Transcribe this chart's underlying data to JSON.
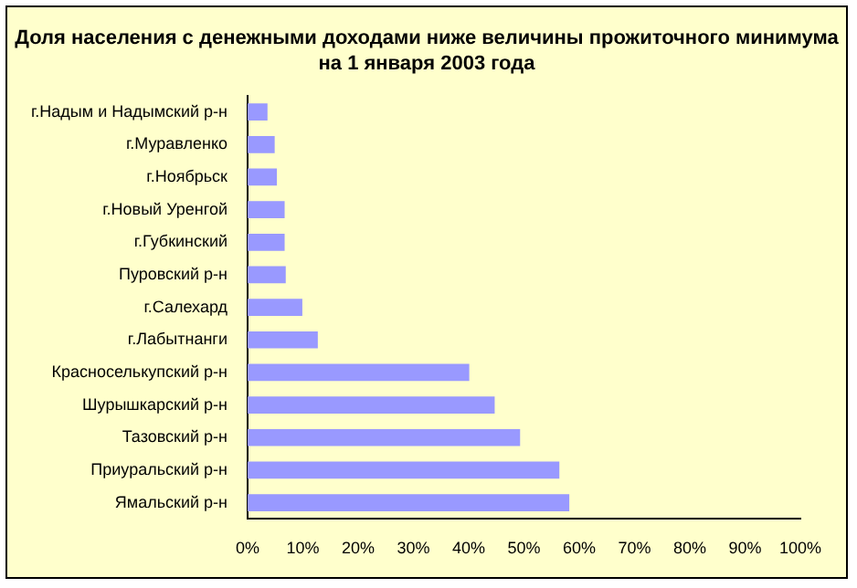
{
  "chart_data": {
    "type": "bar",
    "orientation": "horizontal",
    "title": "Доля населения с денежными доходами ниже величины прожиточного минимума на 1 января 2003 года",
    "categories": [
      "г.Надым и Надымский р-н",
      "г.Муравленко",
      "г.Ноябрьск",
      "г.Новый Уренгой",
      "г.Губкинский",
      "Пуровский р-н",
      "г.Салехард",
      "г.Лабытнанги",
      "Красноселькупский р-н",
      "Шурышкарский р-н",
      "Тазовский р-н",
      "Приуральский р-н",
      "Ямальский р-н"
    ],
    "values": [
      3.6,
      4.9,
      5.3,
      6.7,
      6.7,
      6.9,
      9.9,
      12.7,
      40.1,
      44.7,
      49.3,
      56.4,
      58.2
    ],
    "color": "#9999ff",
    "xlim": [
      0,
      100
    ],
    "xticks": [
      {
        "value": 0,
        "label": "0%"
      },
      {
        "value": 10,
        "label": "10%"
      },
      {
        "value": 20,
        "label": "20%"
      },
      {
        "value": 30,
        "label": "30%"
      },
      {
        "value": 40,
        "label": "40%"
      },
      {
        "value": 50,
        "label": "50%"
      },
      {
        "value": 60,
        "label": "60%"
      },
      {
        "value": 70,
        "label": "70%"
      },
      {
        "value": 80,
        "label": "80%"
      },
      {
        "value": 90,
        "label": "90%"
      },
      {
        "value": 100,
        "label": "100%"
      }
    ],
    "grid": false,
    "legend": false
  }
}
